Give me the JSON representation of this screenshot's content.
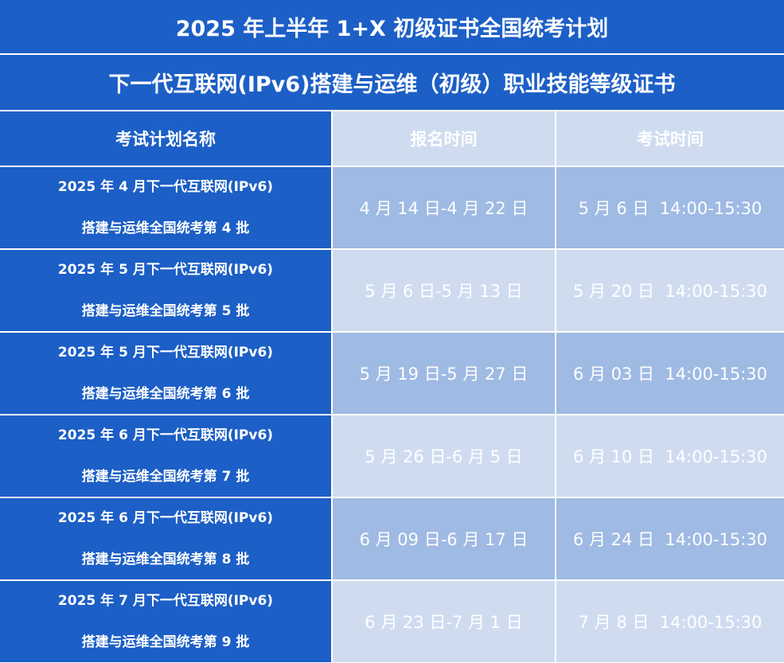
{
  "title": "2025 年上半年 1+X 初级证书全国统考计划",
  "subtitle": "下一代互联网(IPv6)搭建与运维（初级）职业技能等级证书",
  "columns": [
    "考试计划名称",
    "报名时间",
    "考试时间"
  ],
  "colors": {
    "blue": "#1c5fc6",
    "light_blue": "#cfdcf0",
    "mid_blue": "#9fbae3"
  },
  "rows": [
    {
      "name_line1": "2025 年 4 月下一代互联网(IPv6)",
      "name_line2": "搭建与运维全国统考第 4 批",
      "registration": "4 月 14 日-4 月 22 日",
      "exam": "5 月 6 日  14:00-15:30"
    },
    {
      "name_line1": "2025 年 5 月下一代互联网(IPv6)",
      "name_line2": "搭建与运维全国统考第 5 批",
      "registration": "5 月 6 日-5 月 13 日",
      "exam": "5 月 20 日  14:00-15:30"
    },
    {
      "name_line1": "2025 年 5 月下一代互联网(IPv6)",
      "name_line2": "搭建与运维全国统考第 6 批",
      "registration": "5 月 19 日-5 月 27 日",
      "exam": "6 月 03 日  14:00-15:30"
    },
    {
      "name_line1": "2025 年 6 月下一代互联网(IPv6)",
      "name_line2": "搭建与运维全国统考第 7 批",
      "registration": "5 月 26 日-6 月 5 日",
      "exam": "6 月 10 日  14:00-15:30"
    },
    {
      "name_line1": "2025 年 6 月下一代互联网(IPv6)",
      "name_line2": "搭建与运维全国统考第 8 批",
      "registration": "6 月 09 日-6 月 17 日",
      "exam": "6 月 24 日  14:00-15:30"
    },
    {
      "name_line1": "2025 年 7 月下一代互联网(IPv6)",
      "name_line2": "搭建与运维全国统考第 9 批",
      "registration": "6 月 23 日-7 月 1 日",
      "exam": "7 月 8 日  14:00-15:30"
    }
  ]
}
